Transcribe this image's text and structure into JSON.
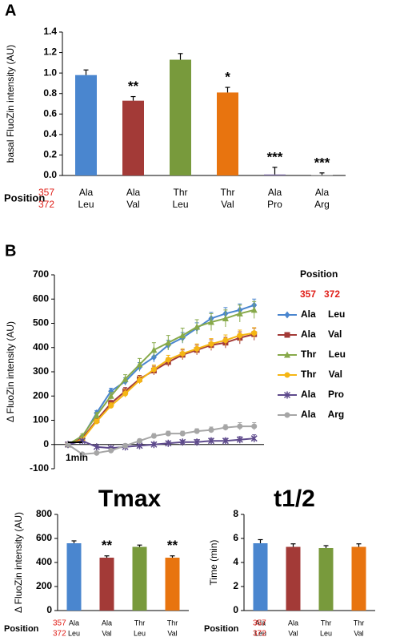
{
  "chart_data": [
    {
      "type": "bar",
      "panel": "A",
      "ylabel": "basal FluoZin intensity (AU)",
      "position_label": "Position",
      "position_numbers": [
        "357",
        "372"
      ],
      "categories": [
        [
          "Ala",
          "Leu"
        ],
        [
          "Ala",
          "Val"
        ],
        [
          "Thr",
          "Leu"
        ],
        [
          "Thr",
          "Val"
        ],
        [
          "Ala",
          "Pro"
        ],
        [
          "Ala",
          "Arg"
        ]
      ],
      "values": [
        0.98,
        0.73,
        1.13,
        0.81,
        0.01,
        0.005
      ],
      "errors": [
        0.05,
        0.04,
        0.06,
        0.05,
        0.07,
        0.02
      ],
      "significance": [
        null,
        "**",
        null,
        "*",
        "***",
        "***"
      ],
      "colors": [
        "#4a86cf",
        "#a33a37",
        "#789a3c",
        "#e8740f",
        "#7a6aa0",
        "#a0a0a0"
      ],
      "ylim": [
        0,
        1.4
      ],
      "yticks": [
        {
          "value": 0,
          "label": "0.0"
        },
        0.2,
        0.4,
        0.6,
        0.8,
        {
          "value": 1,
          "label": "1.0"
        },
        1.2,
        1.4
      ]
    },
    {
      "type": "line",
      "panel": "B",
      "ylabel": "Δ FluoZin intensity (AU)",
      "scale_bar": "1min",
      "legend_title": "Position",
      "legend_numbers": [
        "357",
        "372"
      ],
      "categories": [
        null,
        null,
        null,
        null,
        null,
        null,
        null,
        null,
        null,
        null,
        null,
        null,
        null,
        null
      ],
      "series": [
        {
          "name": "Ala Leu",
          "color": "#4a86cf",
          "marker": "diamond",
          "values": [
            0,
            30,
            130,
            220,
            260,
            320,
            360,
            410,
            440,
            480,
            520,
            540,
            555,
            575
          ],
          "errors": [
            5,
            8,
            10,
            12,
            15,
            18,
            20,
            20,
            22,
            22,
            25,
            25,
            25,
            25
          ]
        },
        {
          "name": "Ala Val",
          "color": "#a33a37",
          "marker": "square",
          "values": [
            0,
            25,
            100,
            170,
            220,
            270,
            305,
            340,
            370,
            390,
            410,
            420,
            440,
            455
          ],
          "errors": [
            5,
            8,
            10,
            12,
            15,
            15,
            18,
            18,
            20,
            20,
            22,
            22,
            25,
            25
          ]
        },
        {
          "name": "Thr Leu",
          "color": "#87a94a",
          "marker": "triangle",
          "values": [
            0,
            35,
            120,
            200,
            270,
            330,
            390,
            420,
            450,
            485,
            505,
            520,
            540,
            555
          ],
          "errors": [
            5,
            8,
            12,
            15,
            18,
            25,
            30,
            30,
            30,
            30,
            35,
            35,
            35,
            35
          ]
        },
        {
          "name": "Thr Val",
          "color": "#f5b614",
          "marker": "circle",
          "values": [
            0,
            20,
            95,
            160,
            210,
            265,
            310,
            350,
            375,
            395,
            415,
            430,
            450,
            460
          ],
          "errors": [
            5,
            8,
            10,
            12,
            15,
            15,
            18,
            18,
            20,
            20,
            22,
            22,
            22,
            22
          ]
        },
        {
          "name": "Ala Pro",
          "color": "#5e4a8c",
          "marker": "star",
          "values": [
            0,
            15,
            -10,
            -15,
            -10,
            -5,
            0,
            5,
            10,
            10,
            15,
            15,
            20,
            25
          ],
          "errors": [
            3,
            5,
            5,
            5,
            5,
            5,
            8,
            8,
            8,
            10,
            10,
            10,
            12,
            15
          ]
        },
        {
          "name": "Ala Arg",
          "color": "#a6a6a6",
          "marker": "circle",
          "values": [
            0,
            -40,
            -35,
            -25,
            -5,
            15,
            35,
            45,
            45,
            55,
            60,
            70,
            75,
            75
          ],
          "errors": [
            3,
            5,
            5,
            5,
            8,
            8,
            10,
            10,
            10,
            10,
            12,
            12,
            15,
            15
          ]
        }
      ],
      "ylim": [
        -100,
        700
      ],
      "yticks": [
        -100,
        0,
        100,
        200,
        300,
        400,
        500,
        600,
        700
      ]
    },
    {
      "type": "bar",
      "title": "Tmax",
      "ylabel": "Δ FluoZin intensity (AU)",
      "position_label": "Position",
      "position_numbers": [
        "357",
        "372"
      ],
      "categories": [
        [
          "Ala",
          "Leu"
        ],
        [
          "Ala",
          "Val"
        ],
        [
          "Thr",
          "Leu"
        ],
        [
          "Thr",
          "Val"
        ]
      ],
      "values": [
        560,
        440,
        530,
        440
      ],
      "errors": [
        20,
        15,
        15,
        15
      ],
      "significance": [
        null,
        "**",
        null,
        "**"
      ],
      "colors": [
        "#4a86cf",
        "#a33a37",
        "#789a3c",
        "#e8740f"
      ],
      "ylim": [
        0,
        800
      ],
      "yticks": [
        0,
        200,
        400,
        600,
        800
      ]
    },
    {
      "type": "bar",
      "title": "t1/2",
      "ylabel": "Time (min)",
      "position_label": "Position",
      "position_numbers": [
        "357",
        "372"
      ],
      "categories": [
        [
          "Ala",
          "Leu"
        ],
        [
          "Ala",
          "Val"
        ],
        [
          "Thr",
          "Leu"
        ],
        [
          "Thr",
          "Val"
        ]
      ],
      "values": [
        5.6,
        5.3,
        5.2,
        5.3
      ],
      "errors": [
        0.3,
        0.25,
        0.2,
        0.25
      ],
      "colors": [
        "#4a86cf",
        "#a33a37",
        "#789a3c",
        "#e8740f"
      ],
      "ylim": [
        0,
        8
      ],
      "yticks": [
        0,
        2,
        4,
        6,
        8
      ]
    }
  ]
}
